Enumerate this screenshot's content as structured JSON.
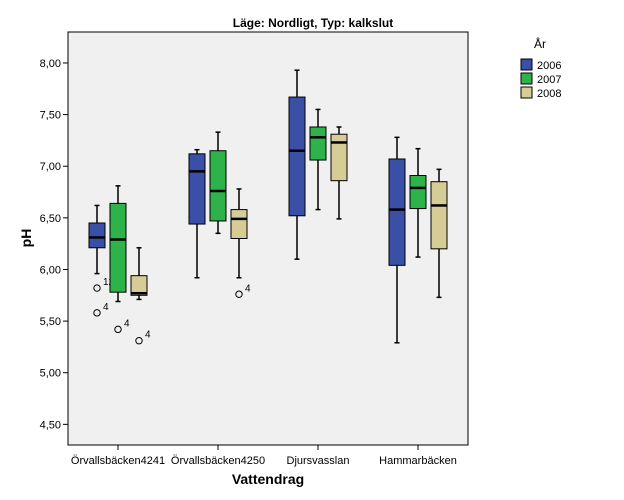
{
  "chart_data": {
    "type": "boxplot",
    "title": "Läge: Nordligt, Typ: kalkslut",
    "xlabel": "Vattendrag",
    "ylabel": "pH",
    "ylim": [
      4.3,
      8.3
    ],
    "yticks": [
      "4,50",
      "5,00",
      "5,50",
      "6,00",
      "6,50",
      "7,00",
      "7,50",
      "8,00"
    ],
    "ytick_values": [
      4.5,
      5.0,
      5.5,
      6.0,
      6.5,
      7.0,
      7.5,
      8.0
    ],
    "grid": false,
    "legend": {
      "title": "År",
      "placement": "right"
    },
    "categories": [
      "Örvallsbäcken4241",
      "Örvallsbäcken4250",
      "Djursvasslan",
      "Hammarbäcken"
    ],
    "series": [
      {
        "name": "2006",
        "color": "#3a4fa6",
        "boxes": [
          {
            "whisker_low": 5.96,
            "q1": 6.21,
            "median": 6.31,
            "q3": 6.45,
            "whisker_high": 6.62,
            "outliers": [
              {
                "value": 5.82,
                "label": "12"
              },
              {
                "value": 5.58,
                "label": "4"
              }
            ]
          },
          {
            "whisker_low": 5.92,
            "q1": 6.44,
            "median": 6.95,
            "q3": 7.12,
            "whisker_high": 7.16,
            "outliers": []
          },
          {
            "whisker_low": 6.1,
            "q1": 6.52,
            "median": 7.15,
            "q3": 7.67,
            "whisker_high": 7.93,
            "outliers": []
          },
          {
            "whisker_low": 5.29,
            "q1": 6.04,
            "median": 6.58,
            "q3": 7.07,
            "whisker_high": 7.28,
            "outliers": []
          }
        ]
      },
      {
        "name": "2007",
        "color": "#2eb34a",
        "boxes": [
          {
            "whisker_low": 5.69,
            "q1": 5.78,
            "median": 6.29,
            "q3": 6.64,
            "whisker_high": 6.81,
            "outliers": [
              {
                "value": 5.42,
                "label": "4"
              }
            ]
          },
          {
            "whisker_low": 6.35,
            "q1": 6.47,
            "median": 6.76,
            "q3": 7.15,
            "whisker_high": 7.33,
            "outliers": []
          },
          {
            "whisker_low": 6.58,
            "q1": 7.06,
            "median": 7.28,
            "q3": 7.38,
            "whisker_high": 7.55,
            "outliers": []
          },
          {
            "whisker_low": 6.12,
            "q1": 6.59,
            "median": 6.79,
            "q3": 6.91,
            "whisker_high": 7.17,
            "outliers": []
          }
        ]
      },
      {
        "name": "2008",
        "color": "#d6cc96",
        "boxes": [
          {
            "whisker_low": 5.71,
            "q1": 5.75,
            "median": 5.77,
            "q3": 5.94,
            "whisker_high": 6.21,
            "outliers": [
              {
                "value": 5.31,
                "label": "4"
              }
            ]
          },
          {
            "whisker_low": 5.92,
            "q1": 6.3,
            "median": 6.49,
            "q3": 6.58,
            "whisker_high": 6.78,
            "outliers": [
              {
                "value": 5.76,
                "label": "4"
              }
            ]
          },
          {
            "whisker_low": 6.49,
            "q1": 6.86,
            "median": 7.23,
            "q3": 7.31,
            "whisker_high": 7.38,
            "outliers": []
          },
          {
            "whisker_low": 5.73,
            "q1": 6.2,
            "median": 6.62,
            "q3": 6.85,
            "whisker_high": 6.97,
            "outliers": []
          }
        ]
      }
    ]
  }
}
